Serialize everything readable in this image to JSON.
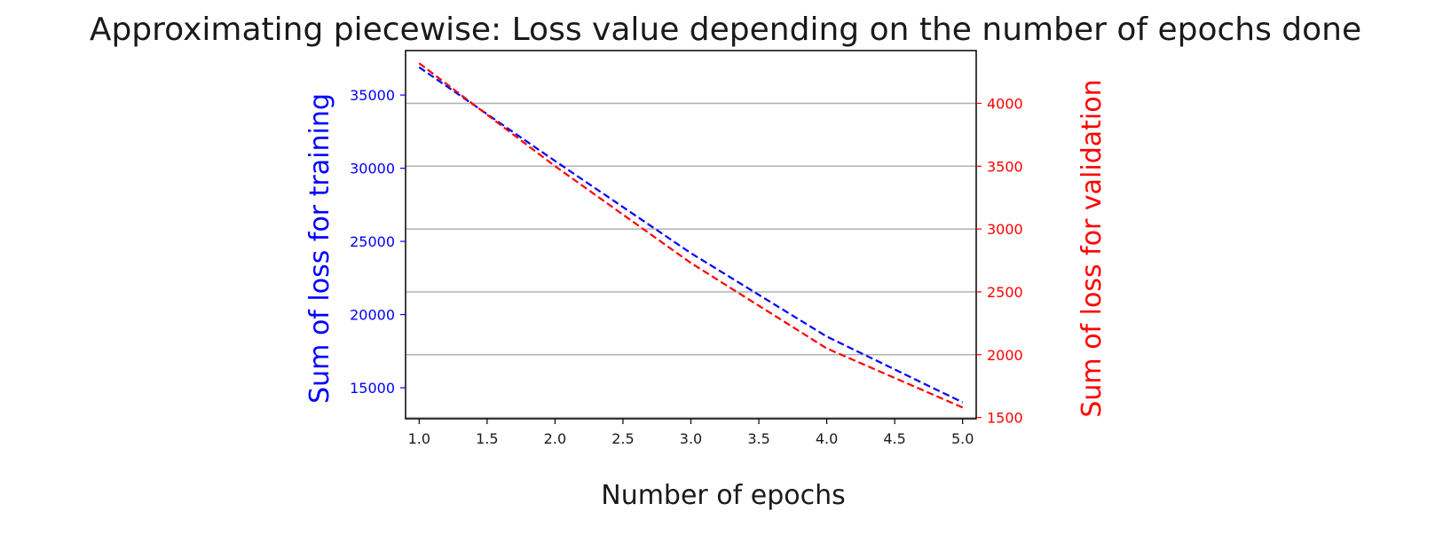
{
  "chart_data": {
    "type": "line",
    "title": "Approximating piecewise: Loss value depending on the number of epochs done",
    "xlabel": "Number of epochs",
    "ylabel": "Sum of loss for training",
    "y2label": "Sum of loss for validation",
    "xlim": [
      0.9,
      5.1
    ],
    "ylim": [
      12880,
      38040
    ],
    "y2lim": [
      1490,
      4420
    ],
    "x": [
      1.0,
      2.0,
      3.0,
      4.0,
      5.0
    ],
    "x_ticks": [
      "1.0",
      "1.5",
      "2.0",
      "2.5",
      "3.0",
      "3.5",
      "4.0",
      "4.5",
      "5.0"
    ],
    "y_ticks": [
      "15000",
      "20000",
      "25000",
      "30000",
      "35000"
    ],
    "y2_ticks": [
      "1500",
      "2000",
      "2500",
      "3000",
      "3500",
      "4000"
    ],
    "grid": "right-axis horizontal lines",
    "series": [
      {
        "axis": "left",
        "color": "#0000ff",
        "style": "dashed",
        "values": [
          36900,
          30500,
          24200,
          18500,
          14000
        ]
      },
      {
        "axis": "right",
        "color": "#ff0000",
        "style": "dashed",
        "values": [
          4320,
          3500,
          2730,
          2050,
          1580
        ]
      }
    ]
  }
}
